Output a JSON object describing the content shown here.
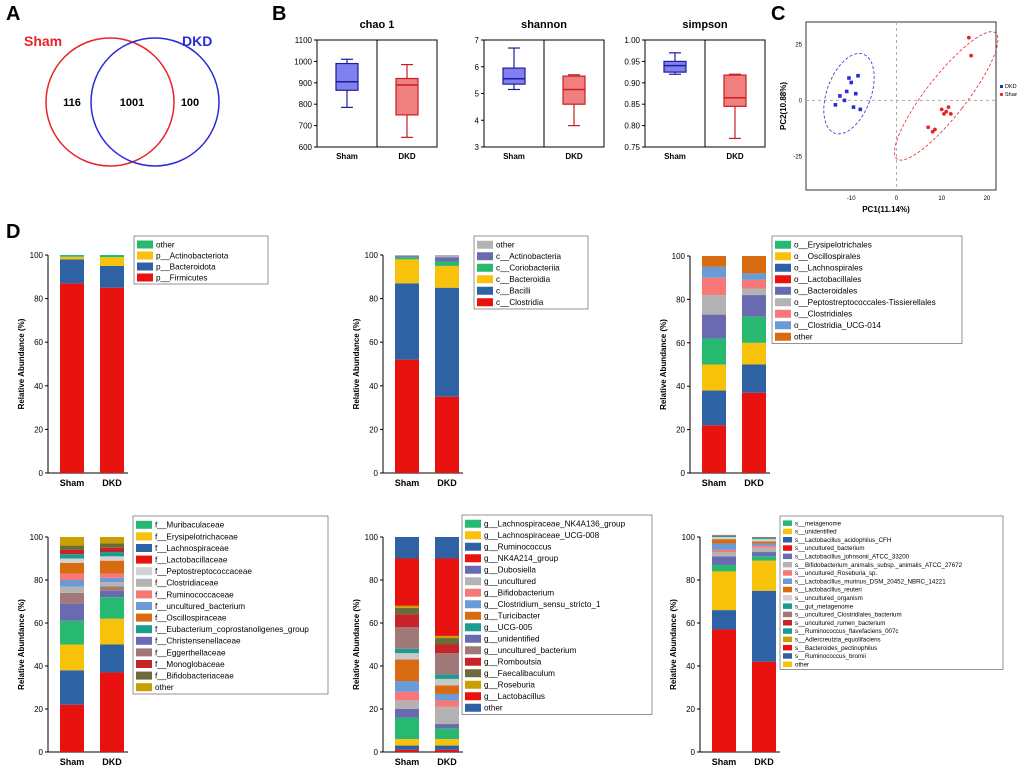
{
  "panel_labels": [
    "A",
    "B",
    "C",
    "D"
  ],
  "colors": {
    "sham": "#e8232a",
    "dkd": "#2b2bd6",
    "box_sham_fill": "#8080ee",
    "box_dkd_fill": "#f08080",
    "box_dkd_edge": "#c81e1e",
    "box_sham_edge": "#1d1d9e"
  },
  "chart_data": [
    {
      "id": "venn",
      "type": "venn",
      "sets": [
        "Sham",
        "DKD"
      ],
      "only_left": "116",
      "overlap": "1001",
      "only_right": "100"
    },
    {
      "id": "chao1",
      "type": "boxplot",
      "title": "chao 1",
      "categories": [
        "Sham",
        "DKD"
      ],
      "ylim": [
        600,
        1100
      ],
      "yticks": [
        600,
        700,
        800,
        900,
        1000,
        1100
      ],
      "boxes": [
        {
          "min": 785,
          "q1": 865,
          "median": 905,
          "q3": 990,
          "max": 1010
        },
        {
          "min": 645,
          "q1": 750,
          "median": 890,
          "q3": 920,
          "max": 985
        }
      ]
    },
    {
      "id": "shannon",
      "type": "boxplot",
      "title": "shannon",
      "categories": [
        "Sham",
        "DKD"
      ],
      "ylim": [
        3,
        7
      ],
      "yticks": [
        3,
        4,
        5,
        6,
        7
      ],
      "boxes": [
        {
          "min": 5.15,
          "q1": 5.35,
          "median": 5.55,
          "q3": 5.95,
          "max": 6.7
        },
        {
          "min": 3.8,
          "q1": 4.6,
          "median": 5.15,
          "q3": 5.65,
          "max": 5.7
        }
      ]
    },
    {
      "id": "simpson",
      "type": "boxplot",
      "title": "simpson",
      "categories": [
        "Sham",
        "DKD"
      ],
      "ylim": [
        0.75,
        1.0
      ],
      "yticks": [
        "0.75",
        "0.80",
        "0.85",
        "0.90",
        "0.95",
        "1.00"
      ],
      "boxes": [
        {
          "min": 0.92,
          "q1": 0.925,
          "median": 0.94,
          "q3": 0.95,
          "max": 0.97
        },
        {
          "min": 0.77,
          "q1": 0.845,
          "median": 0.865,
          "q3": 0.918,
          "max": 0.92
        }
      ]
    },
    {
      "id": "pca",
      "type": "scatter",
      "xlabel": "PC1(11.14%)",
      "ylabel": "PC2(10.88%)",
      "xlim": [
        -20,
        22
      ],
      "ylim": [
        -40,
        35
      ],
      "xticks": [
        -10,
        0,
        10,
        20
      ],
      "yticks": [
        25,
        0,
        -25
      ],
      "legend": [
        "DKD",
        "Sham"
      ],
      "series": [
        {
          "name": "DKD",
          "points": [
            [
              -13.5,
              -2
            ],
            [
              -12.5,
              2
            ],
            [
              -11.5,
              0
            ],
            [
              -11,
              4
            ],
            [
              -10.5,
              10
            ],
            [
              -10,
              8
            ],
            [
              -9.5,
              -3
            ],
            [
              -9,
              3
            ],
            [
              -8.5,
              11
            ],
            [
              -8,
              -4
            ]
          ]
        },
        {
          "name": "Sham",
          "points": [
            [
              7,
              -12
            ],
            [
              8,
              -14
            ],
            [
              8.5,
              -13
            ],
            [
              10,
              -4
            ],
            [
              10.5,
              -6
            ],
            [
              11,
              -5
            ],
            [
              11.5,
              -3
            ],
            [
              12,
              -6
            ],
            [
              16,
              28
            ],
            [
              16.5,
              20
            ]
          ]
        }
      ]
    },
    {
      "id": "phylum",
      "type": "stacked-bar",
      "ylabel": "Relative Abundance (%)",
      "categories": [
        "Sham",
        "DKD"
      ],
      "ylim": [
        0,
        100
      ],
      "yticks": [
        0,
        20,
        40,
        60,
        80,
        100
      ],
      "legend": [
        "other",
        "p__Actinobacteriota",
        "p__Bacteroidota",
        "p__Firmicutes"
      ],
      "segments": [
        {
          "name": "p__Firmicutes",
          "color": "#e8120f",
          "values": [
            87,
            85
          ]
        },
        {
          "name": "p__Bacteroidota",
          "color": "#2e62a5",
          "values": [
            11,
            10
          ]
        },
        {
          "name": "p__Actinobacteriota",
          "color": "#f8c20a",
          "values": [
            1.2,
            4
          ]
        },
        {
          "name": "other",
          "color": "#27b970",
          "values": [
            0.8,
            1
          ]
        }
      ]
    },
    {
      "id": "class",
      "type": "stacked-bar",
      "ylabel": "Relative Abundance (%)",
      "categories": [
        "Sham",
        "DKD"
      ],
      "ylim": [
        0,
        100
      ],
      "yticks": [
        0,
        20,
        40,
        60,
        80,
        100
      ],
      "legend": [
        "other",
        "c__Actinobacteria",
        "c__Coriobacteriia",
        "c__Bacteroidia",
        "c__Bacilli",
        "c__Clostridia"
      ],
      "segments": [
        {
          "name": "c__Clostridia",
          "color": "#e8120f",
          "values": [
            52,
            35
          ]
        },
        {
          "name": "c__Bacilli",
          "color": "#2e62a5",
          "values": [
            35,
            50
          ]
        },
        {
          "name": "c__Bacteroidia",
          "color": "#f8c20a",
          "values": [
            11,
            10
          ]
        },
        {
          "name": "c__Coriobacteriia",
          "color": "#27b970",
          "values": [
            1,
            2
          ]
        },
        {
          "name": "c__Actinobacteria",
          "color": "#6a6ab0",
          "values": [
            0.5,
            2
          ]
        },
        {
          "name": "other",
          "color": "#b3b3b3",
          "values": [
            0.5,
            1
          ]
        }
      ]
    },
    {
      "id": "order",
      "type": "stacked-bar",
      "ylabel": "Relative Abundance (%)",
      "categories": [
        "Sham",
        "DKD"
      ],
      "ylim": [
        0,
        100
      ],
      "yticks": [
        0,
        20,
        40,
        60,
        80,
        100
      ],
      "legend": [
        "o__Erysipelotrichales",
        "o__Oscillospirales",
        "o__Lachnospirales",
        "o__Lactobacillales",
        "o__Bacteroidales",
        "o__Peptostreptococcales-Tissierellales",
        "o__Clostridiales",
        "o__Clostridia_UCG-014",
        "other"
      ],
      "segments": [
        {
          "name": "o__Lactobacillales",
          "color": "#e8120f",
          "values": [
            22,
            37
          ]
        },
        {
          "name": "o__Lachnospirales",
          "color": "#2e62a5",
          "values": [
            16,
            13
          ]
        },
        {
          "name": "o__Oscillospirales",
          "color": "#f8c20a",
          "values": [
            12,
            10
          ]
        },
        {
          "name": "o__Erysipelotrichales",
          "color": "#27b970",
          "values": [
            12,
            12
          ]
        },
        {
          "name": "o__Bacteroidales",
          "color": "#6a6ab0",
          "values": [
            11,
            10
          ]
        },
        {
          "name": "o__Peptostreptococcales-Tissierellales",
          "color": "#b3b3b3",
          "values": [
            9,
            3
          ]
        },
        {
          "name": "o__Clostridiales",
          "color": "#f87878",
          "values": [
            8,
            4
          ]
        },
        {
          "name": "o__Clostridia_UCG-014",
          "color": "#6b9bd6",
          "values": [
            5,
            3
          ]
        },
        {
          "name": "other",
          "color": "#d86a12",
          "values": [
            5,
            8
          ]
        }
      ]
    },
    {
      "id": "family",
      "type": "stacked-bar",
      "ylabel": "Relative Abundance (%)",
      "categories": [
        "Sham",
        "DKD"
      ],
      "ylim": [
        0,
        100
      ],
      "yticks": [
        0,
        20,
        40,
        60,
        80,
        100
      ],
      "legend": [
        "f__Muribaculaceae",
        "f__Erysipelotrichaceae",
        "f__Lachnospiraceae",
        "f__Lactobacillaceae",
        "f__Peptostreptococcaceae",
        "f__Clostridiaceae",
        "f__Ruminococcaceae",
        "f__uncultured_bacterium",
        "f__Oscillospiraceae",
        "f__Eubacterium_coprostanoligenes_group",
        "f__Christensenellaceae",
        "f__Eggerthellaceae",
        "f__Monoglobaceae",
        "f__Bifidobacteriaceae",
        "other"
      ],
      "segments": [
        {
          "name": "f__Lactobacillaceae",
          "color": "#e8120f",
          "values": [
            22,
            37
          ]
        },
        {
          "name": "f__Lachnospiraceae",
          "color": "#2e62a5",
          "values": [
            16,
            13
          ]
        },
        {
          "name": "f__Erysipelotrichaceae",
          "color": "#f8c20a",
          "values": [
            12,
            12
          ]
        },
        {
          "name": "f__Muribaculaceae",
          "color": "#27b970",
          "values": [
            11,
            10
          ]
        },
        {
          "name": "f__Christensenellaceae",
          "color": "#6a6ab0",
          "values": [
            8,
            3
          ]
        },
        {
          "name": "f__Eggerthellaceae",
          "color": "#a07878",
          "values": [
            5,
            2
          ]
        },
        {
          "name": "f__Clostridiaceae",
          "color": "#b3b3b3",
          "values": [
            3,
            2
          ]
        },
        {
          "name": "f__uncultured_bacterium",
          "color": "#6b9bd6",
          "values": [
            3,
            2
          ]
        },
        {
          "name": "f__Ruminococcaceae",
          "color": "#f87878",
          "values": [
            3,
            2
          ]
        },
        {
          "name": "f__Eubacterium_coprostanoligenes_group",
          "color": "#d86a12",
          "values": [
            5,
            6
          ]
        },
        {
          "name": "f__Peptostreptococcaceae",
          "color": "#d2d2d2",
          "values": [
            2,
            2
          ]
        },
        {
          "name": "f__Oscillospiraceae",
          "color": "#1a9c90",
          "values": [
            2,
            2
          ]
        },
        {
          "name": "f__Monoglobaceae",
          "color": "#c9232a",
          "values": [
            2,
            2
          ]
        },
        {
          "name": "f__Bifidobacteriaceae",
          "color": "#6b6b3a",
          "values": [
            2,
            2
          ]
        },
        {
          "name": "other",
          "color": "#c8a000",
          "values": [
            4,
            3
          ]
        }
      ]
    },
    {
      "id": "genus",
      "type": "stacked-bar",
      "ylabel": "Relative Abundance (%)",
      "categories": [
        "Sham",
        "DKD"
      ],
      "ylim": [
        0,
        100
      ],
      "yticks": [
        0,
        20,
        40,
        60,
        80,
        100
      ],
      "legend": [
        "g__Lachnospiraceae_NK4A136_group",
        "g__Lachnospiraceae_UCG-008",
        "g__Ruminococcus",
        "g__NK4A214_group",
        "g__Dubosiella",
        "g__uncultured",
        "g__Bifidobacterium",
        "g__Clostridium_sensu_stricto_1",
        "g__Turicibacter",
        "g__UCG-005",
        "g__unidentified",
        "g__uncultured_bacterium",
        "g__Romboutsia",
        "g__Faecalibaculum",
        "g__Roseburia",
        "g__Lactobacillus",
        "other"
      ],
      "segments": [
        {
          "name": "g__Lactobacillus",
          "color": "#e8120f",
          "values": [
            1,
            1
          ]
        },
        {
          "name": "g__Roseburia",
          "color": "#2e62a5",
          "values": [
            2,
            2
          ]
        },
        {
          "name": "g__Faecalibaculum",
          "color": "#f8c20a",
          "values": [
            3,
            3
          ]
        },
        {
          "name": "g__Romboutsia",
          "color": "#27b970",
          "values": [
            10,
            5
          ]
        },
        {
          "name": "g__uncultured_bacterium",
          "color": "#6a6ab0",
          "values": [
            4,
            2
          ]
        },
        {
          "name": "g__unidentified",
          "color": "#b3b3b3",
          "values": [
            4,
            8
          ]
        },
        {
          "name": "g__UCG-005",
          "color": "#f87878",
          "values": [
            4,
            3
          ]
        },
        {
          "name": "g__Turicibacter",
          "color": "#6b9bd6",
          "values": [
            5,
            3
          ]
        },
        {
          "name": "g__Clostridium_sensu_stricto_1",
          "color": "#d86a12",
          "values": [
            10,
            4
          ]
        },
        {
          "name": "g__Bifidobacterium",
          "color": "#c8c8c8",
          "values": [
            3,
            3
          ]
        },
        {
          "name": "g__uncultured",
          "color": "#1a9c90",
          "values": [
            2,
            2
          ]
        },
        {
          "name": "g__Dubosiella",
          "color": "#a07878",
          "values": [
            10,
            10
          ]
        },
        {
          "name": "g__NK4A214_group",
          "color": "#c9232a",
          "values": [
            6,
            4
          ]
        },
        {
          "name": "g__Ruminococcus",
          "color": "#6b6b3a",
          "values": [
            3,
            3
          ]
        },
        {
          "name": "g__Lachnospiraceae_UCG-008",
          "color": "#c8a000",
          "values": [
            1,
            1
          ]
        },
        {
          "name": "g__Lachnospiraceae_NK4A136_group",
          "color": "#e8120f",
          "values": [
            22,
            36
          ]
        },
        {
          "name": "other",
          "color": "#2e62a5",
          "values": [
            10,
            10
          ]
        }
      ]
    },
    {
      "id": "species",
      "type": "stacked-bar",
      "ylabel": "Relative Abundance (%)",
      "categories": [
        "Sham",
        "DKD"
      ],
      "ylim": [
        0,
        100
      ],
      "yticks": [
        0,
        20,
        40,
        60,
        80,
        100
      ],
      "legend": [
        "s__metagenome",
        "s__unidentified",
        "s__Lactobacillus_acidophilus_CFH",
        "s__uncultured_bacterium",
        "s__Lactobacillus_johnsonii_ATCC_33200",
        "s__Bifidobacterium_animalis_subsp._animalis_ATCC_27672",
        "s__uncultured_Roseburia_sp.",
        "s__Lactobacillus_murinus_DSM_20452_NBRC_14221",
        "s__Lactobacillus_reuteri",
        "s__uncultured_organism",
        "s__gut_metagenome",
        "s__uncultured_Clostridiales_bacterium",
        "s__uncultured_rumen_bacterium",
        "s__Ruminococcus_flavefaciens_007c",
        "s__Adlercreutzia_equolifaciens",
        "s__Bacteroides_pectinophilus",
        "s__Ruminococcus_bromii",
        "other"
      ],
      "segments": [
        {
          "name": "s__uncultured_bacterium",
          "color": "#e8120f",
          "values": [
            57,
            42
          ]
        },
        {
          "name": "s__Ruminococcus_bromii",
          "color": "#2e62a5",
          "values": [
            9,
            33
          ]
        },
        {
          "name": "other",
          "color": "#f8c20a",
          "values": [
            18,
            14
          ]
        },
        {
          "name": "s__metagenome",
          "color": "#27b970",
          "values": [
            3,
            2
          ]
        },
        {
          "name": "s__Lactobacillus_acidophilus_CFH",
          "color": "#6a6ab0",
          "values": [
            4,
            2
          ]
        },
        {
          "name": "s__Lactobacillus_johnsonii_ATCC_33200",
          "color": "#b3b3b3",
          "values": [
            2,
            2
          ]
        },
        {
          "name": "s__uncultured_Roseburia_sp.",
          "color": "#f87878",
          "values": [
            1,
            1
          ]
        },
        {
          "name": "s__Lactobacillus_murinus_DSM_20452_NBRC_14221",
          "color": "#6b9bd6",
          "values": [
            3,
            1
          ]
        },
        {
          "name": "s__Lactobacillus_reuteri",
          "color": "#d86a12",
          "values": [
            2,
            1
          ]
        },
        {
          "name": "s__uncultured_organism",
          "color": "#d2d2d2",
          "values": [
            1,
            1
          ]
        },
        {
          "name": "s__gut_metagenome",
          "color": "#1a9c90",
          "values": [
            0.5,
            0.5
          ]
        },
        {
          "name": "s__uncultured_Clostridiales_bacterium",
          "color": "#a07878",
          "values": [
            0.5,
            0.5
          ]
        }
      ]
    }
  ],
  "legend_colors": {
    "phylum": [
      "#27b970",
      "#f8c20a",
      "#2e62a5",
      "#e8120f"
    ],
    "class": [
      "#b3b3b3",
      "#6a6ab0",
      "#27b970",
      "#f8c20a",
      "#2e62a5",
      "#e8120f"
    ],
    "order": [
      "#27b970",
      "#f8c20a",
      "#2e62a5",
      "#e8120f",
      "#6a6ab0",
      "#b3b3b3",
      "#f87878",
      "#6b9bd6",
      "#d86a12"
    ],
    "family": [
      "#27b970",
      "#f8c20a",
      "#2e62a5",
      "#e8120f",
      "#d2d2d2",
      "#b3b3b3",
      "#f87878",
      "#6b9bd6",
      "#d86a12",
      "#1a9c90",
      "#6a6ab0",
      "#a07878",
      "#c9232a",
      "#6b6b3a",
      "#c8a000"
    ],
    "genus": [
      "#27b970",
      "#f8c20a",
      "#2e62a5",
      "#e8120f",
      "#6a6ab0",
      "#b3b3b3",
      "#f87878",
      "#6b9bd6",
      "#d86a12",
      "#1a9c90",
      "#6a6ab0",
      "#a07878",
      "#c9232a",
      "#6b6b3a",
      "#c8a000",
      "#e8120f",
      "#2e62a5"
    ],
    "species": [
      "#27b970",
      "#f8c20a",
      "#2e62a5",
      "#e8120f",
      "#6a6ab0",
      "#b3b3b3",
      "#f87878",
      "#6b9bd6",
      "#d86a12",
      "#d2d2d2",
      "#1a9c90",
      "#a07878",
      "#c9232a",
      "#1a9c90",
      "#c8a000",
      "#e8120f",
      "#2e62a5",
      "#f8c20a"
    ]
  }
}
